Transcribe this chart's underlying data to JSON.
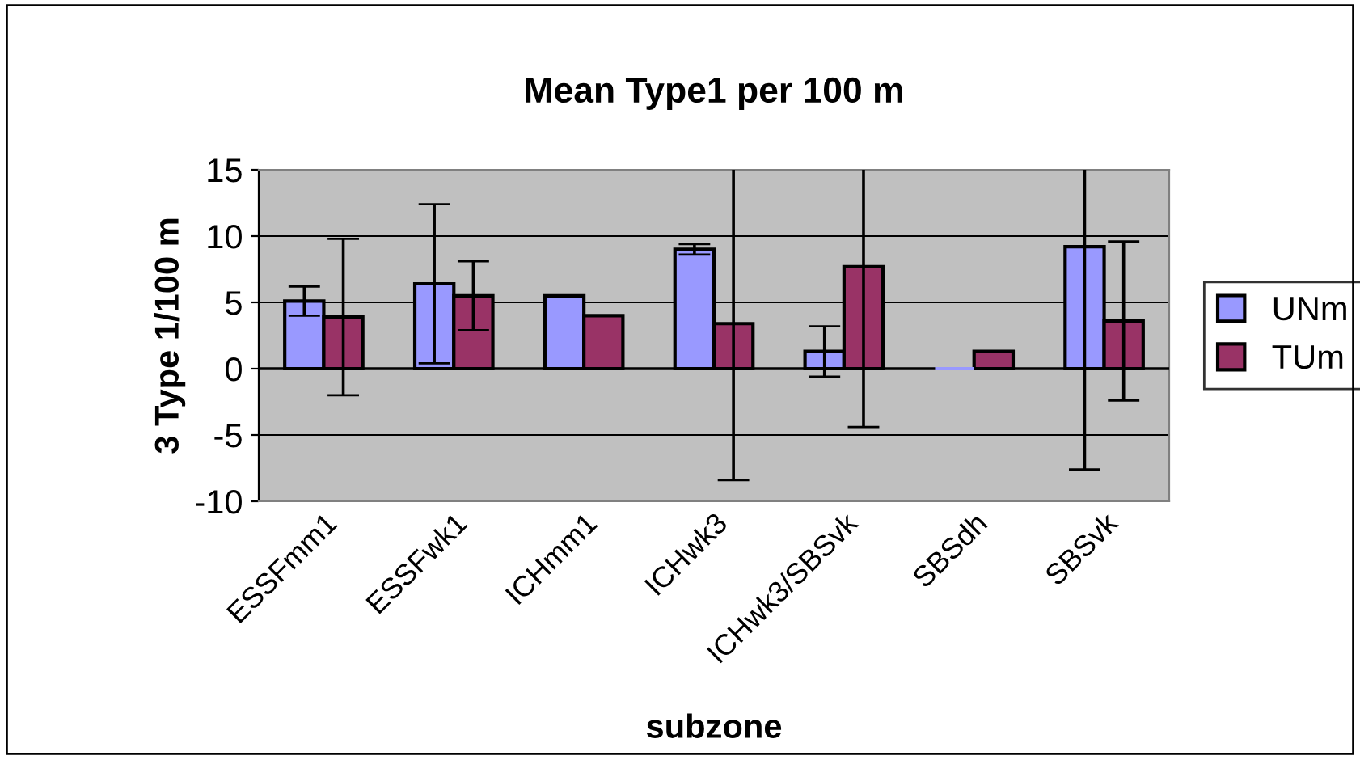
{
  "chart_data": {
    "type": "bar",
    "title": "Mean Type1 per 100 m",
    "xlabel": "subzone",
    "ylabel": "3 Type 1/100 m",
    "categories": [
      "ESSFmm1",
      "ESSFwk1",
      "ICHmm1",
      "ICHwk3",
      "ICHwk3/SBSvk",
      "SBSdh",
      "SBSvk"
    ],
    "series": [
      {
        "name": "UNm",
        "color": "#9999ff",
        "values": [
          5.1,
          6.4,
          5.5,
          9.0,
          1.3,
          0,
          9.2
        ],
        "errors": [
          1.1,
          6.0,
          null,
          0.4,
          1.9,
          null,
          16.8
        ]
      },
      {
        "name": "TUm",
        "color": "#993366",
        "values": [
          3.9,
          5.5,
          4.0,
          3.4,
          7.7,
          1.3,
          3.6
        ],
        "errors": [
          5.9,
          2.6,
          null,
          11.8,
          12.1,
          null,
          6.0
        ]
      }
    ],
    "ylim": [
      -10,
      15
    ],
    "yticks": [
      -10,
      -5,
      0,
      5,
      10,
      15
    ],
    "grid": "y",
    "legend": "right"
  }
}
